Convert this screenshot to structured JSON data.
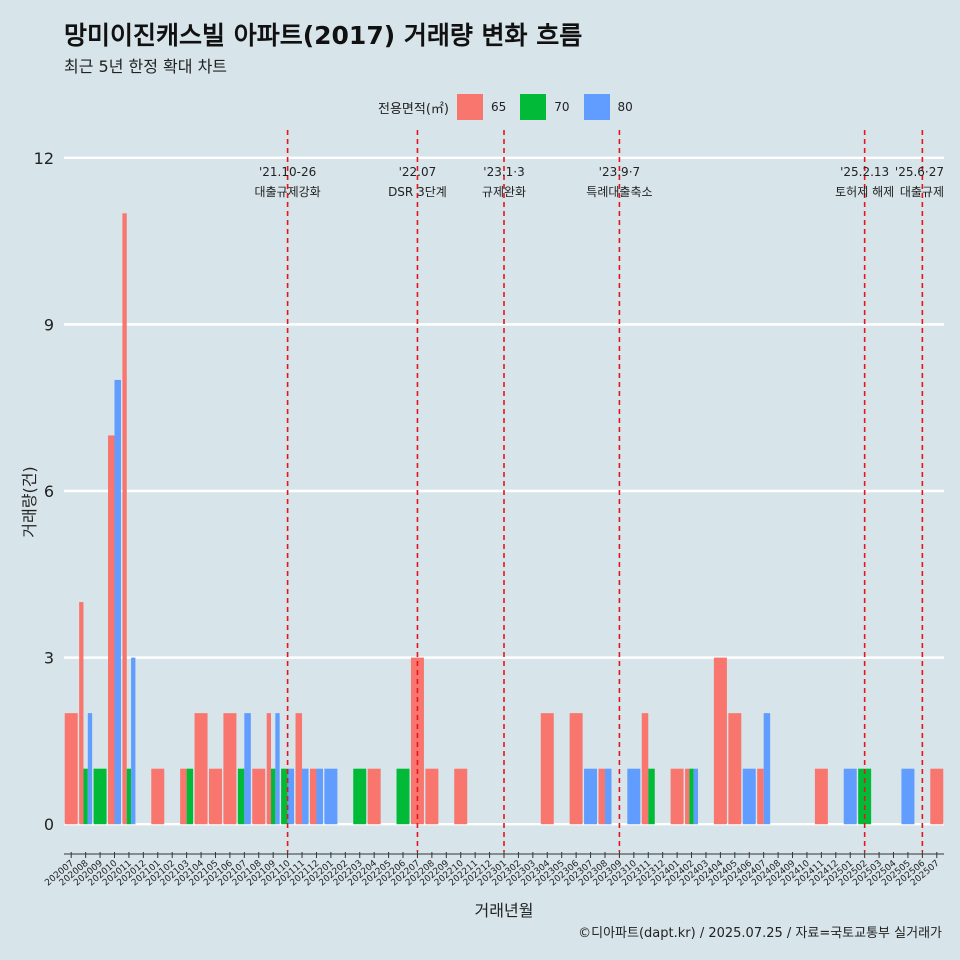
{
  "title": "망미이진캐스빌 아파트(2017) 거래량 변화 흐름",
  "subtitle": "최근 5년 한정 확대 차트",
  "caption": "©디아파트(dapt.kr) / 2025.07.25 / 자료=국토교통부 실거래가",
  "chart_data": {
    "type": "bar",
    "title": "망미이진캐스빌 아파트(2017) 거래량 변화 흐름",
    "subtitle": "최근 5년 한정 확대 차트",
    "xlabel": "거래년월",
    "ylabel": "거래량(건)",
    "ylim": [
      -0.5,
      12.5
    ],
    "yticks": [
      0,
      3,
      6,
      9,
      12
    ],
    "legend": {
      "title": "전용면적(㎡)",
      "position": "top"
    },
    "categories": [
      "202007",
      "202008",
      "202009",
      "202010",
      "202011",
      "202012",
      "202101",
      "202102",
      "202103",
      "202104",
      "202105",
      "202106",
      "202107",
      "202108",
      "202109",
      "202110",
      "202111",
      "202112",
      "202201",
      "202202",
      "202203",
      "202204",
      "202205",
      "202206",
      "202207",
      "202208",
      "202209",
      "202210",
      "202211",
      "202212",
      "202301",
      "202302",
      "202303",
      "202304",
      "202305",
      "202306",
      "202307",
      "202308",
      "202309",
      "202310",
      "202311",
      "202312",
      "202401",
      "202402",
      "202403",
      "202404",
      "202405",
      "202406",
      "202407",
      "202408",
      "202409",
      "202410",
      "202411",
      "202412",
      "202501",
      "202502",
      "202503",
      "202504",
      "202505",
      "202506",
      "202507"
    ],
    "series": [
      {
        "name": "65",
        "color": "#f8766d",
        "values": [
          2,
          4,
          0,
          7,
          11,
          0,
          1,
          0,
          1,
          2,
          1,
          2,
          0,
          1,
          2,
          0,
          2,
          1,
          0,
          0,
          0,
          1,
          0,
          0,
          3,
          1,
          0,
          1,
          0,
          0,
          0,
          0,
          0,
          2,
          0,
          2,
          0,
          1,
          0,
          0,
          2,
          0,
          1,
          1,
          0,
          3,
          2,
          0,
          1,
          0,
          0,
          0,
          1,
          0,
          0,
          0,
          0,
          0,
          0,
          0,
          1
        ]
      },
      {
        "name": "70",
        "color": "#00ba38",
        "values": [
          0,
          1,
          1,
          0,
          1,
          0,
          0,
          0,
          1,
          0,
          0,
          0,
          1,
          0,
          1,
          1,
          0,
          0,
          0,
          0,
          1,
          0,
          0,
          1,
          0,
          0,
          0,
          0,
          0,
          0,
          0,
          0,
          0,
          0,
          0,
          0,
          0,
          0,
          0,
          0,
          1,
          0,
          0,
          1,
          0,
          0,
          0,
          0,
          0,
          0,
          0,
          0,
          0,
          0,
          0,
          1,
          0,
          0,
          0,
          0,
          0
        ]
      },
      {
        "name": "80",
        "color": "#619cff",
        "values": [
          0,
          2,
          0,
          8,
          3,
          0,
          0,
          0,
          0,
          0,
          0,
          0,
          2,
          0,
          2,
          1,
          1,
          1,
          1,
          0,
          0,
          0,
          0,
          0,
          0,
          0,
          0,
          0,
          0,
          0,
          0,
          0,
          0,
          0,
          0,
          0,
          1,
          1,
          0,
          1,
          0,
          0,
          0,
          1,
          0,
          0,
          0,
          1,
          2,
          0,
          0,
          0,
          0,
          0,
          1,
          0,
          0,
          0,
          1,
          0,
          0
        ]
      }
    ],
    "events": [
      {
        "date": "'21.10-26",
        "label": "대출규제강화",
        "category": "202110"
      },
      {
        "date": "'22.07",
        "label": "DSR 3단계",
        "category": "202207"
      },
      {
        "date": "'23.1·3",
        "label": "규제완화",
        "category": "202301"
      },
      {
        "date": "'23.9·7",
        "label": "특례대출축소",
        "category": "202309"
      },
      {
        "date": "'25.2.13",
        "label": "토허제 해제",
        "category": "202502"
      },
      {
        "date": "'25.6·27",
        "label": "대출규제",
        "category": "202506"
      }
    ]
  }
}
